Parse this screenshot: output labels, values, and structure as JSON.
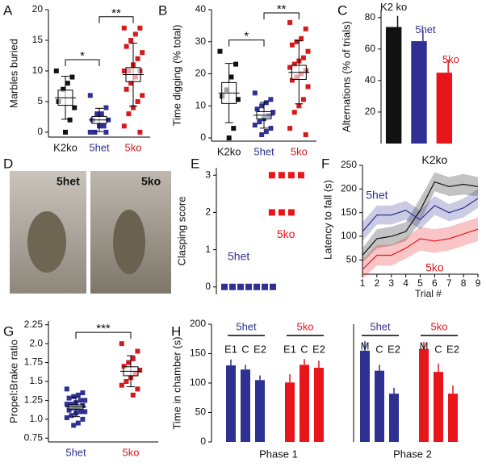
{
  "figure_d": {
    "panel": "D",
    "captions": [
      "5het",
      "5ko"
    ]
  },
  "chart_data": [
    {
      "type": "dot",
      "panel": "A",
      "ylabel": "Marbles buried",
      "ylim": [
        -0.8,
        20
      ],
      "yticks": [
        0,
        5,
        10,
        15,
        20
      ],
      "groups": [
        {
          "name": "K2ko",
          "color": "#111111",
          "values": [
            10,
            9,
            8,
            7,
            5,
            4,
            2,
            0
          ]
        },
        {
          "name": "5het",
          "color": "#2e3192",
          "values": [
            6,
            4,
            3,
            3,
            2,
            2,
            1,
            1,
            0,
            0,
            0
          ]
        },
        {
          "name": "5ko",
          "color": "#d7191c",
          "values": [
            17,
            17,
            16,
            15,
            14,
            13,
            12,
            11,
            10,
            10,
            10,
            9,
            8,
            7,
            6,
            5,
            4,
            3,
            1,
            0
          ]
        }
      ],
      "brackets": [
        {
          "label": "*",
          "between": [
            "K2ko",
            "5het"
          ]
        },
        {
          "label": "**",
          "between": [
            "5het",
            "5ko"
          ]
        }
      ]
    },
    {
      "type": "dot",
      "panel": "B",
      "ylabel": "Time digging (% total)",
      "ylim": [
        -1,
        40
      ],
      "yticks": [
        0,
        10,
        20,
        30,
        40
      ],
      "groups": [
        {
          "name": "K2ko",
          "color": "#111111",
          "values": [
            27,
            23,
            19,
            15,
            13,
            12,
            3,
            0
          ]
        },
        {
          "name": "5het",
          "color": "#2e3192",
          "values": [
            14,
            12,
            11,
            10,
            9,
            8,
            7,
            6,
            5,
            4,
            3,
            2,
            1
          ]
        },
        {
          "name": "5ko",
          "color": "#d7191c",
          "values": [
            36,
            34,
            31,
            30,
            29,
            27,
            25,
            24,
            23,
            22,
            21,
            20,
            19,
            18,
            16,
            12,
            10,
            8,
            3,
            1
          ]
        }
      ],
      "brackets": [
        {
          "label": "*",
          "between": [
            "K2ko",
            "5het"
          ]
        },
        {
          "label": "**",
          "between": [
            "5het",
            "5ko"
          ]
        }
      ]
    },
    {
      "type": "bar",
      "panel": "C",
      "ylabel": "Alternations (% of trials)",
      "categories": [
        "K2 ko",
        "5het",
        "5ko"
      ],
      "colors": [
        "#111111",
        "#2e3192",
        "#e8161b"
      ],
      "values": [
        74,
        65,
        45
      ],
      "errors": [
        7,
        7,
        8
      ],
      "ylim": [
        0,
        85
      ],
      "yticks": [
        20,
        40,
        60,
        80
      ]
    },
    {
      "type": "strip",
      "panel": "E",
      "ylabel": "Clasping score",
      "ylim": [
        -0.2,
        3.2
      ],
      "yticks": [
        0,
        1,
        2,
        3
      ],
      "series": [
        {
          "name": "5het",
          "color": "#2e3192",
          "values": [
            0,
            0,
            0,
            0,
            0,
            0,
            0
          ]
        },
        {
          "name": "5ko",
          "color": "#e8161b",
          "values": [
            3,
            3,
            3,
            3,
            2,
            2,
            2
          ]
        }
      ]
    },
    {
      "type": "line",
      "panel": "F",
      "ylabel": "Latency to fall (s)",
      "xlabel": "Trial #",
      "x": [
        1,
        2,
        3,
        4,
        5,
        6,
        7,
        8,
        9
      ],
      "xlim": [
        1,
        9
      ],
      "xticks": [
        1,
        2,
        3,
        4,
        5,
        6,
        7,
        8,
        9
      ],
      "ylim": [
        20,
        250
      ],
      "yticks": [
        50,
        100,
        150,
        200,
        250
      ],
      "series": [
        {
          "name": "K2ko",
          "color": "#111111",
          "values": [
            60,
            95,
            100,
            110,
            155,
            215,
            205,
            210,
            205
          ],
          "errors": [
            15,
            20,
            20,
            20,
            25,
            20,
            20,
            22,
            20
          ]
        },
        {
          "name": "5het",
          "color": "#2e3192",
          "values": [
            110,
            145,
            145,
            155,
            135,
            165,
            150,
            160,
            180
          ],
          "errors": [
            20,
            20,
            20,
            20,
            20,
            20,
            18,
            20,
            20
          ]
        },
        {
          "name": "5ko",
          "color": "#e8161b",
          "values": [
            30,
            60,
            60,
            75,
            95,
            90,
            95,
            105,
            115
          ],
          "errors": [
            20,
            22,
            22,
            22,
            25,
            25,
            25,
            25,
            25
          ]
        }
      ]
    },
    {
      "type": "dot",
      "panel": "G",
      "ylabel": "Propel:Brake ratio",
      "ylim": [
        0.7,
        2.3
      ],
      "yticks": [
        0.75,
        {
          "value": 1.0,
          "label": "1.0"
        },
        1.25,
        1.5,
        1.75,
        {
          "value": 2.0,
          "label": "2.0"
        },
        2.25
      ],
      "groups": [
        {
          "name": "5het",
          "color": "#2e3192",
          "values": [
            1.4,
            1.35,
            1.32,
            1.3,
            1.28,
            1.25,
            1.25,
            1.22,
            1.2,
            1.2,
            1.18,
            1.15,
            1.15,
            1.12,
            1.1,
            1.1,
            1.08,
            1.05,
            1.02,
            1.0,
            0.95,
            0.92
          ]
        },
        {
          "name": "5ko",
          "color": "#d7191c",
          "values": [
            2.0,
            1.9,
            1.8,
            1.75,
            1.7,
            1.65,
            1.6,
            1.55,
            1.5,
            1.45,
            1.4,
            1.32
          ]
        }
      ],
      "brackets": [
        {
          "label": "***",
          "between": [
            "5het",
            "5ko"
          ]
        }
      ]
    },
    {
      "type": "grouped-bar",
      "panel": "H",
      "ylabel": "Time in chamber (s)",
      "ylim": [
        0,
        200
      ],
      "yticks": [
        0,
        50,
        100,
        150,
        200
      ],
      "groups": [
        {
          "name": "Phase 1",
          "series": [
            {
              "name": "5het",
              "color": "#2e3192",
              "labels": [
                "E1",
                "C",
                "E2"
              ],
              "values": [
                130,
                123,
                105
              ],
              "errors": [
                10,
                8,
                8
              ]
            },
            {
              "name": "5ko",
              "color": "#e8161b",
              "labels": [
                "E1",
                "C",
                "E2"
              ],
              "values": [
                101,
                131,
                126
              ],
              "errors": [
                14,
                10,
                12
              ]
            }
          ]
        },
        {
          "name": "Phase 2",
          "series": [
            {
              "name": "5het",
              "color": "#2e3192",
              "labels": [
                "M",
                "C",
                "E2"
              ],
              "values": [
                155,
                121,
                82
              ],
              "errors": [
                16,
                10,
                10
              ]
            },
            {
              "name": "5ko",
              "color": "#e8161b",
              "labels": [
                "M",
                "C",
                "E2"
              ],
              "values": [
                158,
                119,
                82
              ],
              "errors": [
                12,
                14,
                14
              ]
            }
          ]
        }
      ]
    }
  ]
}
